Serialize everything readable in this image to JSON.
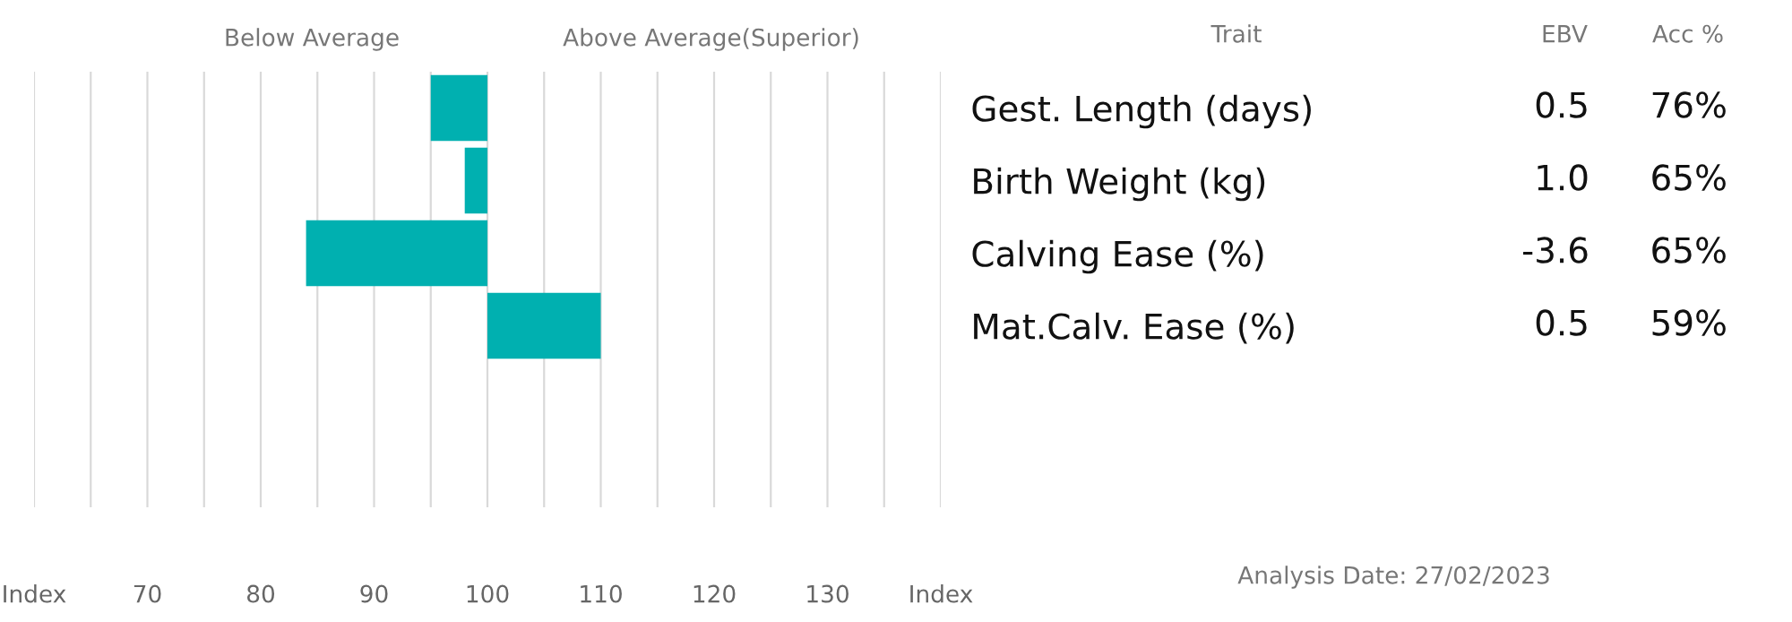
{
  "chart_data": {
    "type": "bar",
    "orientation": "horizontal",
    "categories": [
      "Gest. Length (days)",
      "Birth Weight (kg)",
      "Calving Ease (%)",
      "Mat.Calv. Ease (%)",
      null,
      null
    ],
    "base": [
      95,
      98,
      84,
      100,
      null,
      null
    ],
    "values": [
      5,
      2,
      16,
      10,
      null,
      null
    ],
    "color": "#00b0b0",
    "xlim": [
      60,
      140
    ],
    "xticks": [
      {
        "value": 60,
        "label": "Index"
      },
      {
        "value": 65,
        "label": null
      },
      70,
      {
        "value": 75,
        "label": null
      },
      80,
      {
        "value": 85,
        "label": null
      },
      90,
      {
        "value": 95,
        "label": null
      },
      100,
      {
        "value": 105,
        "label": null
      },
      110,
      {
        "value": 115,
        "label": null
      },
      120,
      {
        "value": 125,
        "label": null
      },
      130,
      {
        "value": 135,
        "label": null
      },
      {
        "value": 140,
        "label": "Index"
      }
    ],
    "grid": "x",
    "annotations": [
      "Below Average",
      "Above Average(Superior)",
      "Trait",
      "EBV",
      "Acc %",
      "0.5",
      "76%",
      "1.0",
      "65%",
      "-3.6",
      "65%",
      "0.5",
      "59%",
      "Analysis Date: 27/02/2023"
    ]
  }
}
